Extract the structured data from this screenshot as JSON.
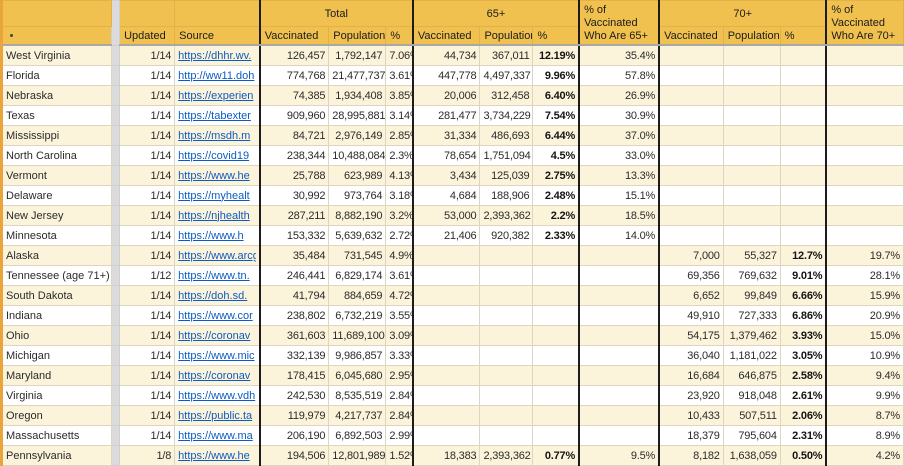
{
  "colors": {
    "header_bg": "#F1C150",
    "row_stripe": "#FCF3DB",
    "pane_gray": "#DBDBDB",
    "edge_orange": "#E9A43C",
    "link_blue": "#0B5BC5"
  },
  "table": {
    "header_groups": {
      "total": "Total",
      "age65": "65+",
      "age70": "70+",
      "share65": "% of Vaccinated Who Are 65+",
      "share70": "% of Vaccinated Who Are 70+"
    },
    "columns": {
      "updated": "Updated",
      "source": "Source",
      "vaccinated": "Vaccinated",
      "population": "Population",
      "percent": "%"
    },
    "rows": [
      {
        "state": "West Virginia",
        "updated": "1/14",
        "source": "https://dhhr.wv.",
        "total": [
          "126,457",
          "1,792,147",
          "7.06%"
        ],
        "age65": [
          "44,734",
          "367,011",
          "12.19%"
        ],
        "share65": "35.4%",
        "age70": [
          "",
          "",
          ""
        ],
        "share70": ""
      },
      {
        "state": "Florida",
        "updated": "1/14",
        "source": "http://ww11.doh",
        "total": [
          "774,768",
          "21,477,737",
          "3.61%"
        ],
        "age65": [
          "447,778",
          "4,497,337",
          "9.96%"
        ],
        "share65": "57.8%",
        "age70": [
          "",
          "",
          ""
        ],
        "share70": ""
      },
      {
        "state": "Nebraska",
        "updated": "1/14",
        "source": "https://experien",
        "total": [
          "74,385",
          "1,934,408",
          "3.85%"
        ],
        "age65": [
          "20,006",
          "312,458",
          "6.40%"
        ],
        "share65": "26.9%",
        "age70": [
          "",
          "",
          ""
        ],
        "share70": ""
      },
      {
        "state": "Texas",
        "updated": "1/14",
        "source": "https://tabexter",
        "total": [
          "909,960",
          "28,995,881",
          "3.14%"
        ],
        "age65": [
          "281,477",
          "3,734,229",
          "7.54%"
        ],
        "share65": "30.9%",
        "age70": [
          "",
          "",
          ""
        ],
        "share70": ""
      },
      {
        "state": "Mississippi",
        "updated": "1/14",
        "source": "https://msdh.m",
        "total": [
          "84,721",
          "2,976,149",
          "2.85%"
        ],
        "age65": [
          "31,334",
          "486,693",
          "6.44%"
        ],
        "share65": "37.0%",
        "age70": [
          "",
          "",
          ""
        ],
        "share70": ""
      },
      {
        "state": "North Carolina",
        "updated": "1/14",
        "source": "https://covid19",
        "total": [
          "238,344",
          "10,488,084",
          "2.3%"
        ],
        "age65": [
          "78,654",
          "1,751,094",
          "4.5%"
        ],
        "share65": "33.0%",
        "age70": [
          "",
          "",
          ""
        ],
        "share70": ""
      },
      {
        "state": "Vermont",
        "updated": "1/14",
        "source": "https://www.he",
        "total": [
          "25,788",
          "623,989",
          "4.13%"
        ],
        "age65": [
          "3,434",
          "125,039",
          "2.75%"
        ],
        "share65": "13.3%",
        "age70": [
          "",
          "",
          ""
        ],
        "share70": ""
      },
      {
        "state": "Delaware",
        "updated": "1/14",
        "source": "https://myhealt",
        "total": [
          "30,992",
          "973,764",
          "3.18%"
        ],
        "age65": [
          "4,684",
          "188,906",
          "2.48%"
        ],
        "share65": "15.1%",
        "age70": [
          "",
          "",
          ""
        ],
        "share70": ""
      },
      {
        "state": "New Jersey",
        "updated": "1/14",
        "source": "https://njhealth",
        "total": [
          "287,211",
          "8,882,190",
          "3.2%"
        ],
        "age65": [
          "53,000",
          "2,393,362",
          "2.2%"
        ],
        "share65": "18.5%",
        "age70": [
          "",
          "",
          ""
        ],
        "share70": ""
      },
      {
        "state": "Minnesota",
        "updated": "1/14",
        "source": "https://www.h",
        "total": [
          "153,332",
          "5,639,632",
          "2.72%"
        ],
        "age65": [
          "21,406",
          "920,382",
          "2.33%"
        ],
        "share65": "14.0%",
        "age70": [
          "",
          "",
          ""
        ],
        "share70": ""
      },
      {
        "state": "Alaska",
        "updated": "1/14",
        "source": "https://www.arcg",
        "total": [
          "35,484",
          "731,545",
          "4.9%"
        ],
        "age65": [
          "",
          "",
          ""
        ],
        "share65": "",
        "age70": [
          "7,000",
          "55,327",
          "12.7%"
        ],
        "share70": "19.7%"
      },
      {
        "state": "Tennessee (age 71+)",
        "updated": "1/12",
        "source": "https://www.tn.",
        "total": [
          "246,441",
          "6,829,174",
          "3.61%"
        ],
        "age65": [
          "",
          "",
          ""
        ],
        "share65": "",
        "age70": [
          "69,356",
          "769,632",
          "9.01%"
        ],
        "share70": "28.1%"
      },
      {
        "state": "South Dakota",
        "updated": "1/14",
        "source": "https://doh.sd.",
        "total": [
          "41,794",
          "884,659",
          "4.72%"
        ],
        "age65": [
          "",
          "",
          ""
        ],
        "share65": "",
        "age70": [
          "6,652",
          "99,849",
          "6.66%"
        ],
        "share70": "15.9%"
      },
      {
        "state": "Indiana",
        "updated": "1/14",
        "source": "https://www.cor",
        "total": [
          "238,802",
          "6,732,219",
          "3.55%"
        ],
        "age65": [
          "",
          "",
          ""
        ],
        "share65": "",
        "age70": [
          "49,910",
          "727,333",
          "6.86%"
        ],
        "share70": "20.9%"
      },
      {
        "state": "Ohio",
        "updated": "1/14",
        "source": "https://coronav",
        "total": [
          "361,603",
          "11,689,100",
          "3.09%"
        ],
        "age65": [
          "",
          "",
          ""
        ],
        "share65": "",
        "age70": [
          "54,175",
          "1,379,462",
          "3.93%"
        ],
        "share70": "15.0%"
      },
      {
        "state": "Michigan",
        "updated": "1/14",
        "source": "https://www.mic",
        "total": [
          "332,139",
          "9,986,857",
          "3.33%"
        ],
        "age65": [
          "",
          "",
          ""
        ],
        "share65": "",
        "age70": [
          "36,040",
          "1,181,022",
          "3.05%"
        ],
        "share70": "10.9%"
      },
      {
        "state": "Maryland",
        "updated": "1/14",
        "source": "https://coronav",
        "total": [
          "178,415",
          "6,045,680",
          "2.95%"
        ],
        "age65": [
          "",
          "",
          ""
        ],
        "share65": "",
        "age70": [
          "16,684",
          "646,875",
          "2.58%"
        ],
        "share70": "9.4%"
      },
      {
        "state": "Virginia",
        "updated": "1/14",
        "source": "https://www.vdh",
        "total": [
          "242,530",
          "8,535,519",
          "2.84%"
        ],
        "age65": [
          "",
          "",
          ""
        ],
        "share65": "",
        "age70": [
          "23,920",
          "918,048",
          "2.61%"
        ],
        "share70": "9.9%"
      },
      {
        "state": "Oregon",
        "updated": "1/14",
        "source": "https://public.ta",
        "total": [
          "119,979",
          "4,217,737",
          "2.84%"
        ],
        "age65": [
          "",
          "",
          ""
        ],
        "share65": "",
        "age70": [
          "10,433",
          "507,511",
          "2.06%"
        ],
        "share70": "8.7%"
      },
      {
        "state": "Massachusetts",
        "updated": "1/14",
        "source": "https://www.ma",
        "total": [
          "206,190",
          "6,892,503",
          "2.99%"
        ],
        "age65": [
          "",
          "",
          ""
        ],
        "share65": "",
        "age70": [
          "18,379",
          "795,604",
          "2.31%"
        ],
        "share70": "8.9%"
      },
      {
        "state": "Pennsylvania",
        "updated": "1/8",
        "source": "https://www.he",
        "total": [
          "194,506",
          "12,801,989",
          "1.52%"
        ],
        "age65": [
          "18,383",
          "2,393,362",
          "0.77%"
        ],
        "share65": "9.5%",
        "age70": [
          "8,182",
          "1,638,059",
          "0.50%"
        ],
        "share70": "4.2%"
      }
    ]
  }
}
